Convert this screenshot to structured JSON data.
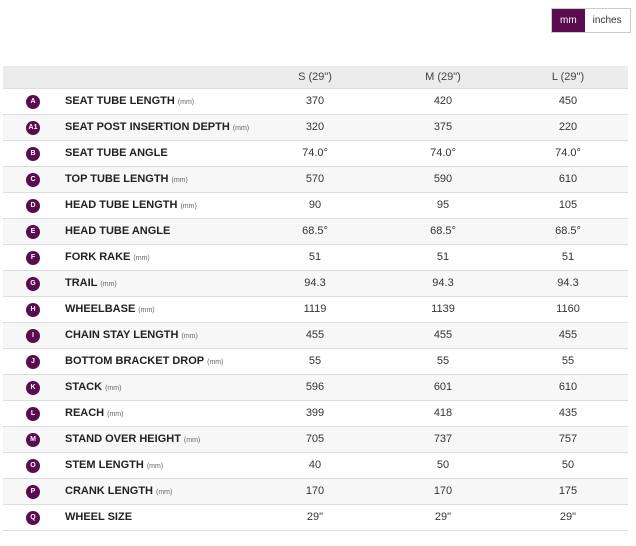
{
  "toggle": {
    "options": [
      "mm",
      "inches"
    ],
    "active": 0
  },
  "table": {
    "columns": [
      "S (29\")",
      "M (29\")",
      "L (29\")"
    ],
    "rows": [
      {
        "badge": "A",
        "label": "SEAT TUBE LENGTH",
        "unit": "(mm)",
        "values": [
          "370",
          "420",
          "450"
        ]
      },
      {
        "badge": "A1",
        "label": "SEAT POST INSERTION DEPTH",
        "unit": "(mm)",
        "values": [
          "320",
          "375",
          "220"
        ]
      },
      {
        "badge": "B",
        "label": "SEAT TUBE ANGLE",
        "values": [
          "74.0°",
          "74.0°",
          "74.0°"
        ]
      },
      {
        "badge": "C",
        "label": "TOP TUBE LENGTH",
        "unit": "(mm)",
        "values": [
          "570",
          "590",
          "610"
        ]
      },
      {
        "badge": "D",
        "label": "HEAD TUBE LENGTH",
        "unit": "(mm)",
        "values": [
          "90",
          "95",
          "105"
        ]
      },
      {
        "badge": "E",
        "label": "HEAD TUBE ANGLE",
        "values": [
          "68.5°",
          "68.5°",
          "68.5°"
        ]
      },
      {
        "badge": "F",
        "label": "FORK RAKE",
        "unit": "(mm)",
        "values": [
          "51",
          "51",
          "51"
        ]
      },
      {
        "badge": "G",
        "label": "TRAIL",
        "unit": "(mm)",
        "values": [
          "94.3",
          "94.3",
          "94.3"
        ]
      },
      {
        "badge": "H",
        "label": "WHEELBASE",
        "unit": "(mm)",
        "values": [
          "1119",
          "1139",
          "1160"
        ]
      },
      {
        "badge": "I",
        "label": "CHAIN STAY LENGTH",
        "unit": "(mm)",
        "values": [
          "455",
          "455",
          "455"
        ]
      },
      {
        "badge": "J",
        "label": "BOTTOM BRACKET DROP",
        "unit": "(mm)",
        "values": [
          "55",
          "55",
          "55"
        ]
      },
      {
        "badge": "K",
        "label": "STACK",
        "unit": "(mm)",
        "values": [
          "596",
          "601",
          "610"
        ]
      },
      {
        "badge": "L",
        "label": "REACH",
        "unit": "(mm)",
        "values": [
          "399",
          "418",
          "435"
        ]
      },
      {
        "badge": "M",
        "label": "STAND OVER HEIGHT",
        "unit": "(mm)",
        "values": [
          "705",
          "737",
          "757"
        ]
      },
      {
        "badge": "O",
        "label": "STEM LENGTH",
        "unit": "(mm)",
        "values": [
          "40",
          "50",
          "50"
        ]
      },
      {
        "badge": "P",
        "label": "CRANK LENGTH",
        "unit": "(mm)",
        "values": [
          "170",
          "170",
          "175"
        ]
      },
      {
        "badge": "Q",
        "label": "WHEEL SIZE",
        "values": [
          "29\"",
          "29\"",
          "29\""
        ]
      }
    ]
  }
}
